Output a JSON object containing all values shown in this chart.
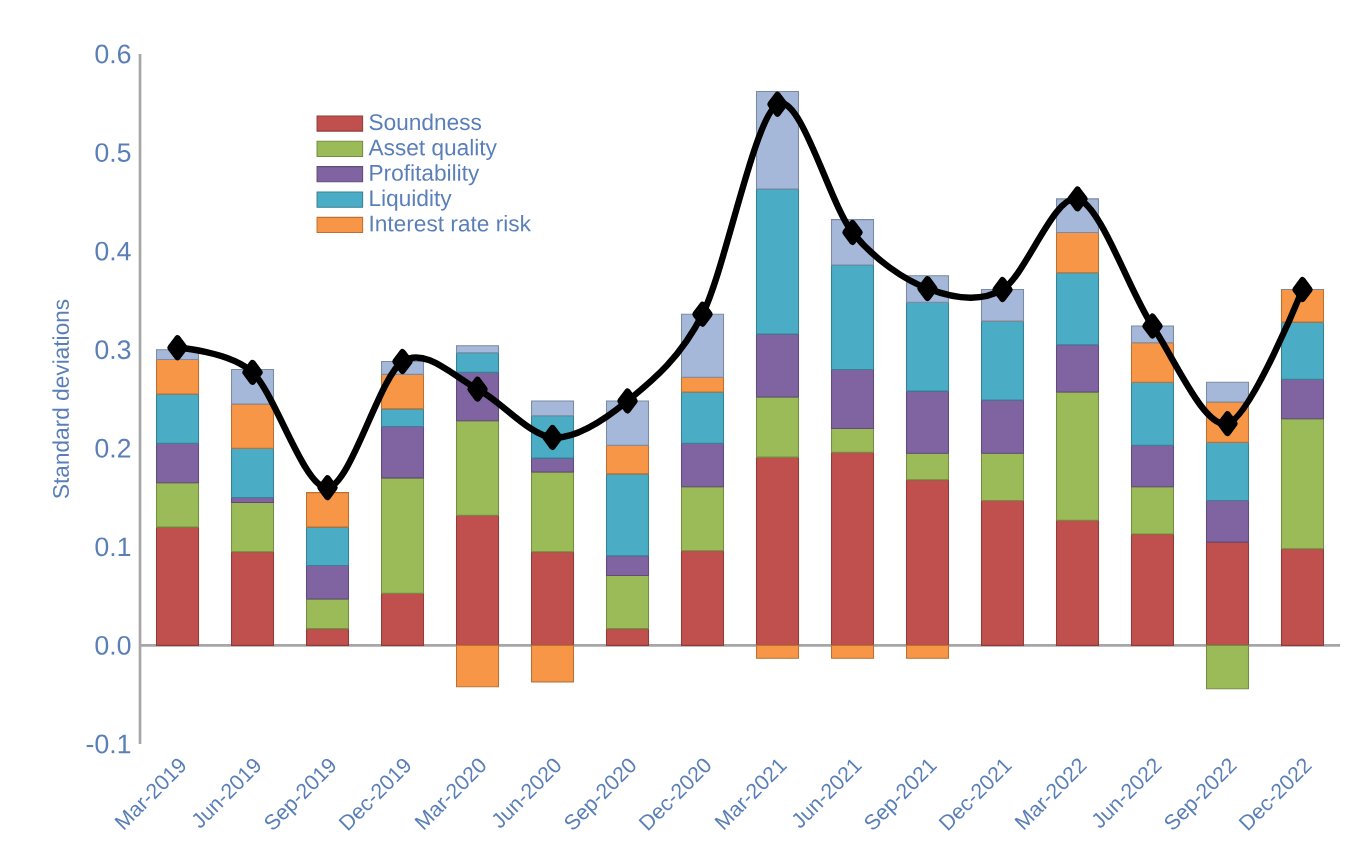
{
  "chart_data": {
    "type": "bar",
    "stacked": true,
    "ylabel": "Standard deviations",
    "legend": "top left",
    "categories": [
      "Mar-2019",
      "Jun-2019",
      "Sep-2019",
      "Dec-2019",
      "Mar-2020",
      "Jun-2020",
      "Sep-2020",
      "Dec-2020",
      "Mar-2021",
      "Jun-2021",
      "Sep-2021",
      "Dec-2021",
      "Mar-2022",
      "Jun-2022",
      "Sep-2022",
      "Dec-2022"
    ],
    "ylim": [
      -0.1,
      0.6
    ],
    "yticks": [
      {
        "value": -0.1,
        "label": "-0.1"
      },
      {
        "value": 0,
        "label": "0.0"
      },
      {
        "value": 0.1,
        "label": "0.1"
      },
      {
        "value": 0.2,
        "label": "0.2"
      },
      {
        "value": 0.3,
        "label": "0.3"
      },
      {
        "value": 0.4,
        "label": "0.4"
      },
      {
        "value": 0.5,
        "label": "0.5"
      },
      {
        "value": 0.6,
        "label": "0.6"
      }
    ],
    "series": [
      {
        "name": "Soundness",
        "color": "#c0504d",
        "values": [
          0.12,
          0.095,
          0.017,
          0.053,
          0.132,
          0.095,
          0.017,
          0.096,
          0.191,
          0.196,
          0.168,
          0.147,
          0.127,
          0.113,
          0.105,
          0.098
        ]
      },
      {
        "name": "Asset quality",
        "color": "#9bbb59",
        "values": [
          0.045,
          0.05,
          0.03,
          0.117,
          0.096,
          0.081,
          0.054,
          0.065,
          0.061,
          0.024,
          0.027,
          0.048,
          0.13,
          0.048,
          -0.044,
          0.132
        ]
      },
      {
        "name": "Profitability",
        "color": "#8064a2",
        "values": [
          0.04,
          0.005,
          0.034,
          0.052,
          0.049,
          0.014,
          0.02,
          0.044,
          0.064,
          0.06,
          0.063,
          0.054,
          0.048,
          0.042,
          0.042,
          0.04
        ]
      },
      {
        "name": "Liquidity",
        "color": "#4bacc6",
        "values": [
          0.05,
          0.05,
          0.039,
          0.018,
          0.02,
          0.043,
          0.083,
          0.052,
          0.147,
          0.106,
          0.09,
          0.08,
          0.073,
          0.064,
          0.059,
          0.058
        ]
      },
      {
        "name": "Interest rate risk",
        "color": "#f79646",
        "values": [
          0.035,
          0.045,
          0.035,
          0.035,
          -0.042,
          -0.037,
          0.029,
          0.015,
          -0.013,
          -0.013,
          -0.013,
          0,
          0.041,
          0.04,
          0.041,
          0.033
        ]
      },
      {
        "color": "#a5b8d9",
        "values": [
          0.01,
          0.035,
          null,
          0.013,
          0.007,
          0.015,
          0.045,
          0.064,
          0.099,
          0.046,
          0.027,
          0.032,
          0.034,
          0.017,
          0.02,
          0
        ]
      },
      {
        "type": "line",
        "color": "#000000",
        "marker": "diamond",
        "values": [
          0.302,
          0.277,
          0.16,
          0.288,
          0.26,
          0.211,
          0.248,
          0.336,
          0.549,
          0.419,
          0.362,
          0.361,
          0.453,
          0.324,
          0.225,
          0.361
        ]
      }
    ]
  }
}
